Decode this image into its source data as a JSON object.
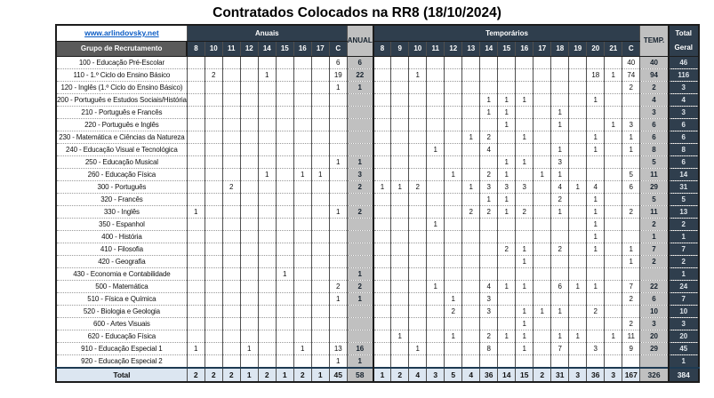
{
  "title": "Contratados Colocados na RR8 (18/10/2024)",
  "link": "www.arlindovsky.net",
  "colors": {
    "dark_header": "#2f3e4d",
    "medium_header": "#5a5a5a",
    "light_summary_column": "#c0c0c0",
    "total_row_background": "#dce6f1",
    "link_blue": "#0a5bc4"
  },
  "header": {
    "row_label": "Grupo de Recrutamento",
    "anuais_label": "Anuais",
    "anual_label": "ANUAL",
    "temporarios_label": "Temporários",
    "temp_label": "TEMP.",
    "total_label_line1": "Total",
    "total_label_line2": "Geral",
    "anuais_cols": [
      "8",
      "10",
      "11",
      "12",
      "14",
      "15",
      "16",
      "17",
      "C"
    ],
    "temp_cols": [
      "8",
      "9",
      "10",
      "11",
      "12",
      "13",
      "14",
      "15",
      "16",
      "17",
      "18",
      "19",
      "20",
      "21",
      "C"
    ]
  },
  "rows": [
    {
      "label": "100 - Educação Pré-Escolar",
      "anuais": [
        "",
        "",
        "",
        "",
        "",
        "",
        "",
        "",
        "6"
      ],
      "anual": "6",
      "temp": [
        "",
        "",
        "",
        "",
        "",
        "",
        "",
        "",
        "",
        "",
        "",
        "",
        "",
        "",
        "40"
      ],
      "temp_total": "40",
      "total": "46"
    },
    {
      "label": "110 - 1.º Ciclo do Ensino Básico",
      "anuais": [
        "",
        "2",
        "",
        "",
        "1",
        "",
        "",
        "",
        "19"
      ],
      "anual": "22",
      "temp": [
        "",
        "",
        "1",
        "",
        "",
        "",
        "",
        "",
        "",
        "",
        "",
        "",
        "18",
        "1",
        "74"
      ],
      "temp_total": "94",
      "total": "116"
    },
    {
      "label": "120 - Inglês (1.º Ciclo do Ensino Básico)",
      "anuais": [
        "",
        "",
        "",
        "",
        "",
        "",
        "",
        "",
        "1"
      ],
      "anual": "1",
      "temp": [
        "",
        "",
        "",
        "",
        "",
        "",
        "",
        "",
        "",
        "",
        "",
        "",
        "",
        "",
        "2"
      ],
      "temp_total": "2",
      "total": "3"
    },
    {
      "label": "200 - Português e Estudos Sociais/História",
      "anuais": [
        "",
        "",
        "",
        "",
        "",
        "",
        "",
        "",
        ""
      ],
      "anual": "",
      "temp": [
        "",
        "",
        "",
        "",
        "",
        "",
        "1",
        "1",
        "1",
        "",
        "",
        "",
        "1",
        "",
        ""
      ],
      "temp_total": "4",
      "total": "4"
    },
    {
      "label": "210 - Português e Francês",
      "anuais": [
        "",
        "",
        "",
        "",
        "",
        "",
        "",
        "",
        ""
      ],
      "anual": "",
      "temp": [
        "",
        "",
        "",
        "",
        "",
        "",
        "1",
        "1",
        "",
        "",
        "1",
        "",
        "",
        "",
        ""
      ],
      "temp_total": "3",
      "total": "3"
    },
    {
      "label": "220 - Português e Inglês",
      "anuais": [
        "",
        "",
        "",
        "",
        "",
        "",
        "",
        "",
        ""
      ],
      "anual": "",
      "temp": [
        "",
        "",
        "",
        "",
        "",
        "",
        "",
        "1",
        "",
        "",
        "1",
        "",
        "",
        "1",
        "3"
      ],
      "temp_total": "6",
      "total": "6"
    },
    {
      "label": "230 - Matemática e Ciências da Natureza",
      "anuais": [
        "",
        "",
        "",
        "",
        "",
        "",
        "",
        "",
        ""
      ],
      "anual": "",
      "temp": [
        "",
        "",
        "",
        "",
        "",
        "1",
        "2",
        "",
        "1",
        "",
        "",
        "",
        "1",
        "",
        "1"
      ],
      "temp_total": "6",
      "total": "6"
    },
    {
      "label": "240 - Educação Visual e Tecnológica",
      "anuais": [
        "",
        "",
        "",
        "",
        "",
        "",
        "",
        "",
        ""
      ],
      "anual": "",
      "temp": [
        "",
        "",
        "",
        "1",
        "",
        "",
        "4",
        "",
        "",
        "",
        "1",
        "",
        "1",
        "",
        "1"
      ],
      "temp_total": "8",
      "total": "8"
    },
    {
      "label": "250 - Educação Musical",
      "anuais": [
        "",
        "",
        "",
        "",
        "",
        "",
        "",
        "",
        "1"
      ],
      "anual": "1",
      "temp": [
        "",
        "",
        "",
        "",
        "",
        "",
        "",
        "1",
        "1",
        "",
        "3",
        "",
        "",
        "",
        ""
      ],
      "temp_total": "5",
      "total": "6"
    },
    {
      "label": "260 - Educação Física",
      "anuais": [
        "",
        "",
        "",
        "",
        "1",
        "",
        "1",
        "1",
        ""
      ],
      "anual": "3",
      "temp": [
        "",
        "",
        "",
        "",
        "1",
        "",
        "2",
        "1",
        "",
        "1",
        "1",
        "",
        "",
        "",
        "5"
      ],
      "temp_total": "11",
      "total": "14"
    },
    {
      "label": "300 - Português",
      "anuais": [
        "",
        "",
        "2",
        "",
        "",
        "",
        "",
        "",
        ""
      ],
      "anual": "2",
      "temp": [
        "1",
        "1",
        "2",
        "",
        "",
        "1",
        "3",
        "3",
        "3",
        "",
        "4",
        "1",
        "4",
        "",
        "6"
      ],
      "temp_total": "29",
      "total": "31"
    },
    {
      "label": "320 - Francês",
      "anuais": [
        "",
        "",
        "",
        "",
        "",
        "",
        "",
        "",
        ""
      ],
      "anual": "",
      "temp": [
        "",
        "",
        "",
        "",
        "",
        "",
        "1",
        "1",
        "",
        "",
        "2",
        "",
        "1",
        "",
        ""
      ],
      "temp_total": "5",
      "total": "5"
    },
    {
      "label": "330 - Inglês",
      "anuais": [
        "1",
        "",
        "",
        "",
        "",
        "",
        "",
        "",
        "1"
      ],
      "anual": "2",
      "temp": [
        "",
        "",
        "",
        "",
        "",
        "2",
        "2",
        "1",
        "2",
        "",
        "1",
        "",
        "1",
        "",
        "2"
      ],
      "temp_total": "11",
      "total": "13"
    },
    {
      "label": "350 - Espanhol",
      "anuais": [
        "",
        "",
        "",
        "",
        "",
        "",
        "",
        "",
        ""
      ],
      "anual": "",
      "temp": [
        "",
        "",
        "",
        "1",
        "",
        "",
        "",
        "",
        "",
        "",
        "",
        "",
        "1",
        "",
        ""
      ],
      "temp_total": "2",
      "total": "2"
    },
    {
      "label": "400 - História",
      "anuais": [
        "",
        "",
        "",
        "",
        "",
        "",
        "",
        "",
        ""
      ],
      "anual": "",
      "temp": [
        "",
        "",
        "",
        "",
        "",
        "",
        "",
        "",
        "",
        "",
        "",
        "",
        "1",
        "",
        ""
      ],
      "temp_total": "1",
      "total": "1"
    },
    {
      "label": "410 - Filosofia",
      "anuais": [
        "",
        "",
        "",
        "",
        "",
        "",
        "",
        "",
        ""
      ],
      "anual": "",
      "temp": [
        "",
        "",
        "",
        "",
        "",
        "",
        "",
        "2",
        "1",
        "",
        "2",
        "",
        "1",
        "",
        "1"
      ],
      "temp_total": "7",
      "total": "7"
    },
    {
      "label": "420 - Geografia",
      "anuais": [
        "",
        "",
        "",
        "",
        "",
        "",
        "",
        "",
        ""
      ],
      "anual": "",
      "temp": [
        "",
        "",
        "",
        "",
        "",
        "",
        "",
        "",
        "1",
        "",
        "",
        "",
        "",
        "",
        "1"
      ],
      "temp_total": "2",
      "total": "2"
    },
    {
      "label": "430 - Economia e Contabilidade",
      "anuais": [
        "",
        "",
        "",
        "",
        "",
        "1",
        "",
        "",
        ""
      ],
      "anual": "1",
      "temp": [
        "",
        "",
        "",
        "",
        "",
        "",
        "",
        "",
        "",
        "",
        "",
        "",
        "",
        "",
        ""
      ],
      "temp_total": "",
      "total": "1"
    },
    {
      "label": "500 - Matemática",
      "anuais": [
        "",
        "",
        "",
        "",
        "",
        "",
        "",
        "",
        "2"
      ],
      "anual": "2",
      "temp": [
        "",
        "",
        "",
        "1",
        "",
        "",
        "4",
        "1",
        "1",
        "",
        "6",
        "1",
        "1",
        "",
        "7"
      ],
      "temp_total": "22",
      "total": "24"
    },
    {
      "label": "510 - Física e Química",
      "anuais": [
        "",
        "",
        "",
        "",
        "",
        "",
        "",
        "",
        "1"
      ],
      "anual": "1",
      "temp": [
        "",
        "",
        "",
        "",
        "1",
        "",
        "3",
        "",
        "",
        "",
        "",
        "",
        "",
        "",
        "2"
      ],
      "temp_total": "6",
      "total": "7"
    },
    {
      "label": "520 - Biologia e Geologia",
      "anuais": [
        "",
        "",
        "",
        "",
        "",
        "",
        "",
        "",
        ""
      ],
      "anual": "",
      "temp": [
        "",
        "",
        "",
        "",
        "2",
        "",
        "3",
        "",
        "1",
        "1",
        "1",
        "",
        "2",
        "",
        ""
      ],
      "temp_total": "10",
      "total": "10"
    },
    {
      "label": "600 - Artes Visuais",
      "anuais": [
        "",
        "",
        "",
        "",
        "",
        "",
        "",
        "",
        ""
      ],
      "anual": "",
      "temp": [
        "",
        "",
        "",
        "",
        "",
        "",
        "",
        "",
        "1",
        "",
        "",
        "",
        "",
        "",
        "2"
      ],
      "temp_total": "3",
      "total": "3"
    },
    {
      "label": "620 - Educação Física",
      "anuais": [
        "",
        "",
        "",
        "",
        "",
        "",
        "",
        "",
        ""
      ],
      "anual": "",
      "temp": [
        "",
        "1",
        "",
        "",
        "1",
        "",
        "2",
        "1",
        "1",
        "",
        "1",
        "1",
        "",
        "1",
        "11"
      ],
      "temp_total": "20",
      "total": "20"
    },
    {
      "label": "910 - Educação Especial 1",
      "anuais": [
        "1",
        "",
        "",
        "1",
        "",
        "",
        "1",
        "",
        "13"
      ],
      "anual": "16",
      "temp": [
        "",
        "",
        "1",
        "",
        "",
        "",
        "8",
        "",
        "1",
        "",
        "7",
        "",
        "3",
        "",
        "9"
      ],
      "temp_total": "29",
      "total": "45"
    },
    {
      "label": "920 - Educação Especial 2",
      "anuais": [
        "",
        "",
        "",
        "",
        "",
        "",
        "",
        "",
        "1"
      ],
      "anual": "1",
      "temp": [
        "",
        "",
        "",
        "",
        "",
        "",
        "",
        "",
        "",
        "",
        "",
        "",
        "",
        "",
        ""
      ],
      "temp_total": "",
      "total": "1"
    }
  ],
  "total_row": {
    "label": "Total",
    "anuais": [
      "2",
      "2",
      "2",
      "1",
      "2",
      "1",
      "2",
      "1",
      "45"
    ],
    "anual": "58",
    "temp": [
      "1",
      "2",
      "4",
      "3",
      "5",
      "4",
      "36",
      "14",
      "15",
      "2",
      "31",
      "3",
      "36",
      "3",
      "167"
    ],
    "temp_total": "326",
    "total": "384"
  }
}
